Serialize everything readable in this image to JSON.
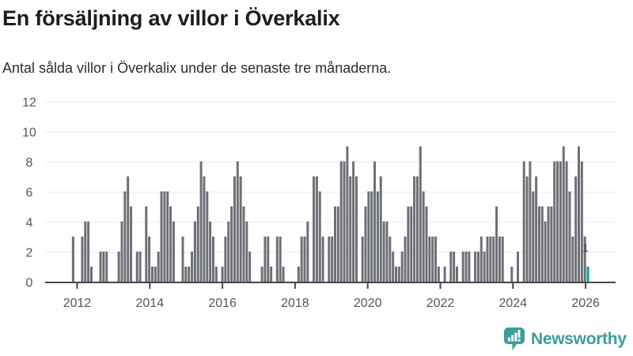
{
  "header": {
    "title": "En försäljning av villor i Överkalix",
    "subtitle": "Antal sålda villor i Överkalix under de senaste tre månaderna."
  },
  "chart_data": {
    "type": "bar",
    "title": "En försäljning av villor i Överkalix",
    "subtitle": "Antal sålda villor i Överkalix under de senaste tre månaderna.",
    "x_start": "2011-11",
    "frequency": "monthly",
    "x_tick_labels": [
      "2012",
      "2014",
      "2016",
      "2018",
      "2020",
      "2022",
      "2024",
      "2026"
    ],
    "x_tick_years": [
      2012,
      2014,
      2016,
      2018,
      2020,
      2022,
      2024,
      2026
    ],
    "y_ticks": [
      0,
      2,
      4,
      6,
      8,
      10,
      12
    ],
    "ylim": [
      0,
      12
    ],
    "grid": "horizontal",
    "legend": "none",
    "bar_color": "#6E7077",
    "highlight_color": "#00A2A4",
    "axis_color": "#474747",
    "grid_color": "#e8e8e8",
    "tick_label_color": "#575757",
    "series": [
      {
        "values": [
          3,
          0,
          0,
          3,
          4,
          4,
          1,
          0,
          0,
          2,
          2,
          2,
          0,
          0,
          0,
          2,
          4,
          6,
          7,
          5,
          0,
          2,
          2,
          0,
          5,
          3,
          1,
          1,
          2,
          6,
          6,
          6,
          5,
          4,
          0,
          0,
          3,
          1,
          1,
          2,
          4,
          5,
          8,
          7,
          6,
          4,
          3,
          1,
          0,
          1,
          3,
          4,
          5,
          7,
          8,
          7,
          5,
          4,
          2,
          0,
          0,
          0,
          1,
          3,
          3,
          1,
          0,
          3,
          3,
          1,
          0,
          0,
          0,
          0,
          1,
          3,
          3,
          4,
          0,
          7,
          7,
          6,
          3,
          0,
          3,
          3,
          5,
          5,
          8,
          8,
          9,
          7,
          8,
          7,
          0,
          3,
          5,
          6,
          6,
          8,
          6,
          7,
          4,
          4,
          3,
          2,
          1,
          1,
          2,
          3,
          5,
          5,
          7,
          7,
          9,
          6,
          5,
          3,
          3,
          3,
          1,
          0,
          1,
          0,
          2,
          2,
          1,
          0,
          2,
          2,
          2,
          0,
          2,
          2,
          3,
          2,
          3,
          3,
          3,
          5,
          3,
          3,
          0,
          0,
          1,
          0,
          2,
          0,
          8,
          7,
          8,
          6,
          7,
          5,
          5,
          4,
          5,
          5,
          8,
          8,
          8,
          9,
          8,
          6,
          3,
          7,
          9,
          8,
          3,
          1
        ]
      }
    ],
    "highlight": {
      "index": 169,
      "value": 1,
      "label": "1"
    }
  },
  "branding": {
    "logo_text": "Newsworthy",
    "logo_color": "#3A9E99"
  }
}
